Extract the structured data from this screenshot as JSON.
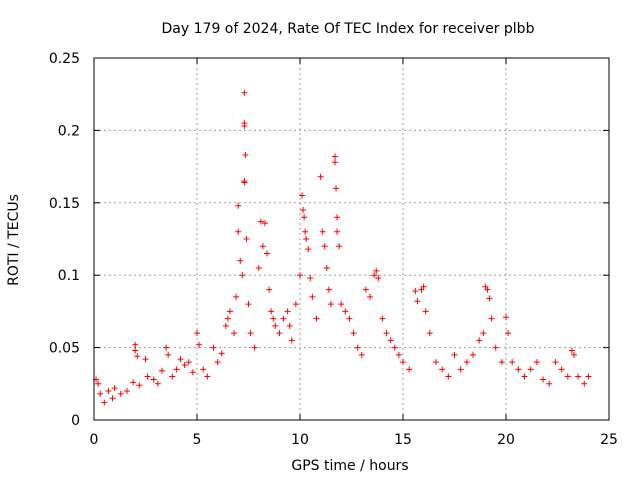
{
  "chart_data": {
    "type": "scatter",
    "title": "Day 179 of 2024, Rate Of TEC Index for receiver plbb",
    "xlabel": "GPS time / hours",
    "ylabel": "ROTI / TECUs",
    "xlim": [
      0,
      25
    ],
    "ylim": [
      0,
      0.25
    ],
    "xticks": [
      0,
      5,
      10,
      15,
      20,
      25
    ],
    "xtick_labels": [
      "0",
      "5",
      "10",
      "15",
      "20",
      "25"
    ],
    "yticks": [
      0,
      0.05,
      0.1,
      0.15,
      0.2,
      0.25
    ],
    "ytick_labels": [
      "0",
      "0.05",
      "0.1",
      "0.15",
      "0.2",
      "0.25"
    ],
    "grid": true,
    "marker": "+",
    "color": "#ff0000",
    "series": [
      {
        "name": "ROTI",
        "points": [
          [
            0.1,
            0.028
          ],
          [
            0.2,
            0.025
          ],
          [
            0.3,
            0.018
          ],
          [
            0.5,
            0.012
          ],
          [
            0.7,
            0.02
          ],
          [
            0.9,
            0.015
          ],
          [
            1.0,
            0.022
          ],
          [
            1.3,
            0.018
          ],
          [
            1.6,
            0.02
          ],
          [
            1.9,
            0.026
          ],
          [
            2.0,
            0.052
          ],
          [
            2.0,
            0.048
          ],
          [
            2.1,
            0.044
          ],
          [
            2.2,
            0.024
          ],
          [
            2.5,
            0.042
          ],
          [
            2.6,
            0.03
          ],
          [
            2.9,
            0.028
          ],
          [
            3.1,
            0.025
          ],
          [
            3.3,
            0.034
          ],
          [
            3.5,
            0.05
          ],
          [
            3.6,
            0.045
          ],
          [
            3.8,
            0.03
          ],
          [
            4.0,
            0.035
          ],
          [
            4.2,
            0.042
          ],
          [
            4.4,
            0.038
          ],
          [
            4.6,
            0.04
          ],
          [
            4.8,
            0.033
          ],
          [
            5.0,
            0.06
          ],
          [
            5.1,
            0.052
          ],
          [
            5.3,
            0.035
          ],
          [
            5.5,
            0.03
          ],
          [
            5.8,
            0.05
          ],
          [
            6.0,
            0.04
          ],
          [
            6.2,
            0.046
          ],
          [
            6.4,
            0.065
          ],
          [
            6.5,
            0.07
          ],
          [
            6.6,
            0.075
          ],
          [
            6.8,
            0.06
          ],
          [
            6.9,
            0.085
          ],
          [
            7.0,
            0.148
          ],
          [
            7.0,
            0.13
          ],
          [
            7.1,
            0.11
          ],
          [
            7.2,
            0.1
          ],
          [
            7.3,
            0.164
          ],
          [
            7.3,
            0.165
          ],
          [
            7.35,
            0.183
          ],
          [
            7.3,
            0.203
          ],
          [
            7.3,
            0.205
          ],
          [
            7.3,
            0.226
          ],
          [
            7.4,
            0.125
          ],
          [
            7.5,
            0.08
          ],
          [
            7.6,
            0.06
          ],
          [
            7.8,
            0.05
          ],
          [
            8.0,
            0.105
          ],
          [
            8.1,
            0.137
          ],
          [
            8.2,
            0.12
          ],
          [
            8.3,
            0.136
          ],
          [
            8.4,
            0.115
          ],
          [
            8.5,
            0.09
          ],
          [
            8.6,
            0.075
          ],
          [
            8.7,
            0.07
          ],
          [
            8.8,
            0.065
          ],
          [
            9.0,
            0.06
          ],
          [
            9.2,
            0.07
          ],
          [
            9.4,
            0.075
          ],
          [
            9.5,
            0.065
          ],
          [
            9.6,
            0.055
          ],
          [
            9.8,
            0.08
          ],
          [
            10.0,
            0.1
          ],
          [
            10.1,
            0.155
          ],
          [
            10.15,
            0.145
          ],
          [
            10.2,
            0.14
          ],
          [
            10.25,
            0.13
          ],
          [
            10.3,
            0.125
          ],
          [
            10.4,
            0.118
          ],
          [
            10.5,
            0.098
          ],
          [
            10.6,
            0.085
          ],
          [
            10.8,
            0.07
          ],
          [
            11.0,
            0.168
          ],
          [
            11.1,
            0.13
          ],
          [
            11.2,
            0.12
          ],
          [
            11.3,
            0.105
          ],
          [
            11.4,
            0.09
          ],
          [
            11.5,
            0.08
          ],
          [
            11.7,
            0.182
          ],
          [
            11.7,
            0.178
          ],
          [
            11.75,
            0.16
          ],
          [
            11.8,
            0.14
          ],
          [
            11.8,
            0.13
          ],
          [
            11.9,
            0.12
          ],
          [
            12.0,
            0.08
          ],
          [
            12.2,
            0.075
          ],
          [
            12.4,
            0.07
          ],
          [
            12.6,
            0.06
          ],
          [
            12.8,
            0.05
          ],
          [
            13.0,
            0.045
          ],
          [
            13.2,
            0.09
          ],
          [
            13.4,
            0.085
          ],
          [
            13.6,
            0.1
          ],
          [
            13.7,
            0.103
          ],
          [
            13.8,
            0.098
          ],
          [
            14.0,
            0.07
          ],
          [
            14.2,
            0.06
          ],
          [
            14.4,
            0.055
          ],
          [
            14.6,
            0.05
          ],
          [
            14.8,
            0.045
          ],
          [
            15.0,
            0.04
          ],
          [
            15.3,
            0.035
          ],
          [
            15.6,
            0.089
          ],
          [
            15.7,
            0.082
          ],
          [
            15.9,
            0.09
          ],
          [
            16.0,
            0.092
          ],
          [
            16.1,
            0.075
          ],
          [
            16.3,
            0.06
          ],
          [
            16.6,
            0.04
          ],
          [
            16.9,
            0.035
          ],
          [
            17.2,
            0.03
          ],
          [
            17.5,
            0.045
          ],
          [
            17.8,
            0.035
          ],
          [
            18.1,
            0.04
          ],
          [
            18.4,
            0.045
          ],
          [
            18.7,
            0.055
          ],
          [
            18.9,
            0.06
          ],
          [
            19.0,
            0.092
          ],
          [
            19.1,
            0.09
          ],
          [
            19.2,
            0.084
          ],
          [
            19.3,
            0.07
          ],
          [
            19.5,
            0.05
          ],
          [
            19.8,
            0.04
          ],
          [
            20.0,
            0.071
          ],
          [
            20.1,
            0.06
          ],
          [
            20.3,
            0.04
          ],
          [
            20.6,
            0.035
          ],
          [
            20.9,
            0.03
          ],
          [
            21.2,
            0.035
          ],
          [
            21.5,
            0.04
          ],
          [
            21.8,
            0.028
          ],
          [
            22.1,
            0.025
          ],
          [
            22.4,
            0.04
          ],
          [
            22.7,
            0.035
          ],
          [
            23.0,
            0.03
          ],
          [
            23.2,
            0.048
          ],
          [
            23.3,
            0.045
          ],
          [
            23.5,
            0.03
          ],
          [
            23.8,
            0.025
          ],
          [
            24.0,
            0.03
          ]
        ]
      }
    ]
  }
}
